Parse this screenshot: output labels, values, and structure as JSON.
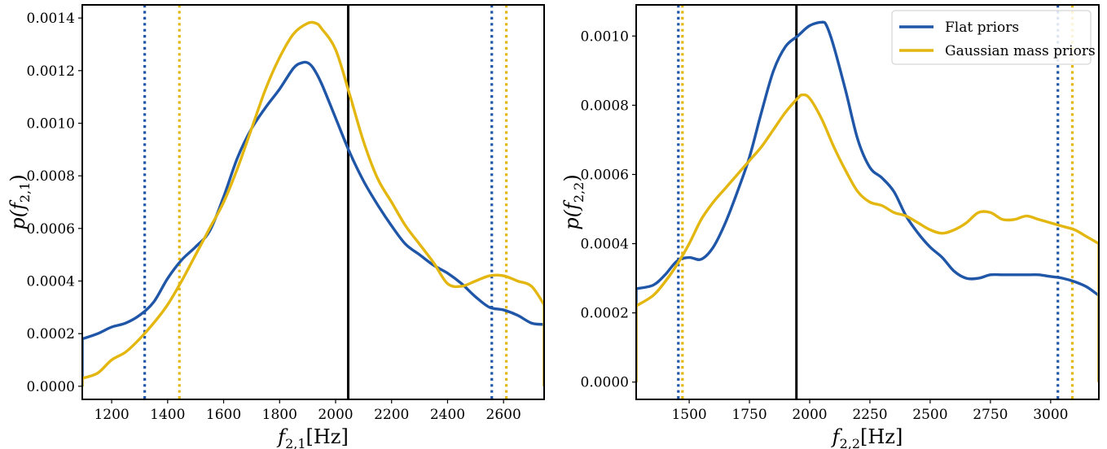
{
  "colors": {
    "flat": "#1f56a7",
    "gaussian": "#e3b610",
    "truth": "#000000"
  },
  "chart_data": [
    {
      "type": "line",
      "xlabel": "f_{2,1}[Hz]",
      "xlabel_parts": {
        "var": "f",
        "sub": "2,1",
        "unit": "[Hz]"
      },
      "ylabel": "p(f_{2,1})",
      "ylabel_parts": {
        "var": "f",
        "sub": "2,1"
      },
      "xlim": [
        1095,
        2745
      ],
      "ylim": [
        -5e-05,
        0.00145
      ],
      "xticks": [
        1200,
        1400,
        1600,
        1800,
        2000,
        2200,
        2400,
        2600
      ],
      "yticks": [
        0.0,
        0.0002,
        0.0004,
        0.0006,
        0.0008,
        0.001,
        0.0012,
        0.0014
      ],
      "ytick_labels": [
        "0.0000",
        "0.0002",
        "0.0004",
        "0.0006",
        "0.0008",
        "0.0010",
        "0.0012",
        "0.0014"
      ],
      "truth_line": 2045,
      "legend": false,
      "series": [
        {
          "name": "Flat priors",
          "color_key": "flat",
          "x": [
            1095,
            1150,
            1200,
            1250,
            1300,
            1350,
            1400,
            1450,
            1500,
            1550,
            1600,
            1650,
            1700,
            1750,
            1800,
            1850,
            1880,
            1900,
            1920,
            1950,
            2000,
            2050,
            2100,
            2150,
            2200,
            2250,
            2300,
            2350,
            2400,
            2450,
            2500,
            2550,
            2600,
            2650,
            2700,
            2745
          ],
          "values": [
            0.00018,
            0.0002,
            0.000225,
            0.00024,
            0.00027,
            0.00032,
            0.00041,
            0.00048,
            0.00053,
            0.00059,
            0.00072,
            0.00087,
            0.00098,
            0.00106,
            0.00113,
            0.00121,
            0.00123,
            0.00123,
            0.00121,
            0.00115,
            0.00102,
            0.00089,
            0.00078,
            0.00069,
            0.00061,
            0.00054,
            0.0005,
            0.00046,
            0.00043,
            0.00039,
            0.00034,
            0.0003,
            0.00029,
            0.00027,
            0.00024,
            0.000235
          ],
          "bounds": [
            1318,
            2558
          ]
        },
        {
          "name": "Gaussian mass priors",
          "color_key": "gaussian",
          "x": [
            1095,
            1150,
            1200,
            1250,
            1300,
            1350,
            1400,
            1450,
            1500,
            1550,
            1600,
            1650,
            1700,
            1750,
            1800,
            1850,
            1900,
            1930,
            1950,
            2000,
            2050,
            2100,
            2150,
            2200,
            2250,
            2300,
            2350,
            2400,
            2450,
            2500,
            2550,
            2600,
            2650,
            2700,
            2745
          ],
          "values": [
            3e-05,
            5e-05,
            0.0001,
            0.00013,
            0.00018,
            0.00024,
            0.00031,
            0.0004,
            0.0005,
            0.0006,
            0.0007,
            0.00083,
            0.00098,
            0.00113,
            0.00125,
            0.00134,
            0.00138,
            0.00138,
            0.00136,
            0.00128,
            0.00111,
            0.00093,
            0.00079,
            0.0007,
            0.00061,
            0.00054,
            0.00047,
            0.00039,
            0.00038,
            0.0004,
            0.00042,
            0.00042,
            0.0004,
            0.00038,
            0.00031
          ],
          "bounds": [
            1442,
            2610
          ]
        }
      ]
    },
    {
      "type": "line",
      "xlabel": "f_{2,2}[Hz]",
      "xlabel_parts": {
        "var": "f",
        "sub": "2,2",
        "unit": "[Hz]"
      },
      "ylabel": "p(f_{2,2})",
      "ylabel_parts": {
        "var": "f",
        "sub": "2,2"
      },
      "xlim": [
        1280,
        3200
      ],
      "ylim": [
        -5e-05,
        0.00109
      ],
      "xticks": [
        1500,
        1750,
        2000,
        2250,
        2500,
        2750,
        3000
      ],
      "yticks": [
        0.0,
        0.0002,
        0.0004,
        0.0006,
        0.0008,
        0.001
      ],
      "ytick_labels": [
        "0.0000",
        "0.0002",
        "0.0004",
        "0.0006",
        "0.0008",
        "0.0010"
      ],
      "truth_line": 1945,
      "legend": true,
      "legend_position": "upper right",
      "series": [
        {
          "name": "Flat priors",
          "color_key": "flat",
          "x": [
            1280,
            1350,
            1400,
            1450,
            1500,
            1550,
            1600,
            1650,
            1700,
            1750,
            1800,
            1850,
            1900,
            1950,
            2000,
            2050,
            2070,
            2100,
            2150,
            2200,
            2250,
            2300,
            2350,
            2400,
            2450,
            2500,
            2550,
            2600,
            2650,
            2700,
            2750,
            2800,
            2850,
            2900,
            2950,
            3000,
            3050,
            3100,
            3150,
            3200
          ],
          "values": [
            0.00027,
            0.00028,
            0.00031,
            0.00035,
            0.00036,
            0.000355,
            0.00039,
            0.00046,
            0.00055,
            0.00065,
            0.00078,
            0.0009,
            0.00097,
            0.001,
            0.00103,
            0.00104,
            0.00103,
            0.00097,
            0.00084,
            0.0007,
            0.00062,
            0.00059,
            0.00055,
            0.00048,
            0.00043,
            0.00039,
            0.00036,
            0.00032,
            0.0003,
            0.0003,
            0.00031,
            0.00031,
            0.00031,
            0.00031,
            0.00031,
            0.000305,
            0.0003,
            0.00029,
            0.000275,
            0.00025
          ],
          "bounds": [
            1455,
            3030
          ]
        },
        {
          "name": "Gaussian mass priors",
          "color_key": "gaussian",
          "x": [
            1280,
            1350,
            1400,
            1450,
            1500,
            1550,
            1600,
            1650,
            1700,
            1750,
            1800,
            1850,
            1900,
            1950,
            1970,
            2000,
            2050,
            2100,
            2150,
            2200,
            2250,
            2300,
            2350,
            2400,
            2450,
            2500,
            2550,
            2600,
            2650,
            2700,
            2750,
            2800,
            2850,
            2900,
            2950,
            3000,
            3050,
            3100,
            3150,
            3200
          ],
          "values": [
            0.00022,
            0.00025,
            0.00029,
            0.00034,
            0.0004,
            0.00047,
            0.00052,
            0.00056,
            0.0006,
            0.00064,
            0.00068,
            0.00073,
            0.00078,
            0.00082,
            0.00083,
            0.00082,
            0.00076,
            0.00068,
            0.00061,
            0.00055,
            0.00052,
            0.00051,
            0.00049,
            0.00048,
            0.00046,
            0.00044,
            0.00043,
            0.00044,
            0.00046,
            0.00049,
            0.00049,
            0.00047,
            0.00047,
            0.00048,
            0.00047,
            0.00046,
            0.00045,
            0.00044,
            0.00042,
            0.0004
          ],
          "bounds": [
            1472,
            3090
          ]
        }
      ]
    }
  ]
}
